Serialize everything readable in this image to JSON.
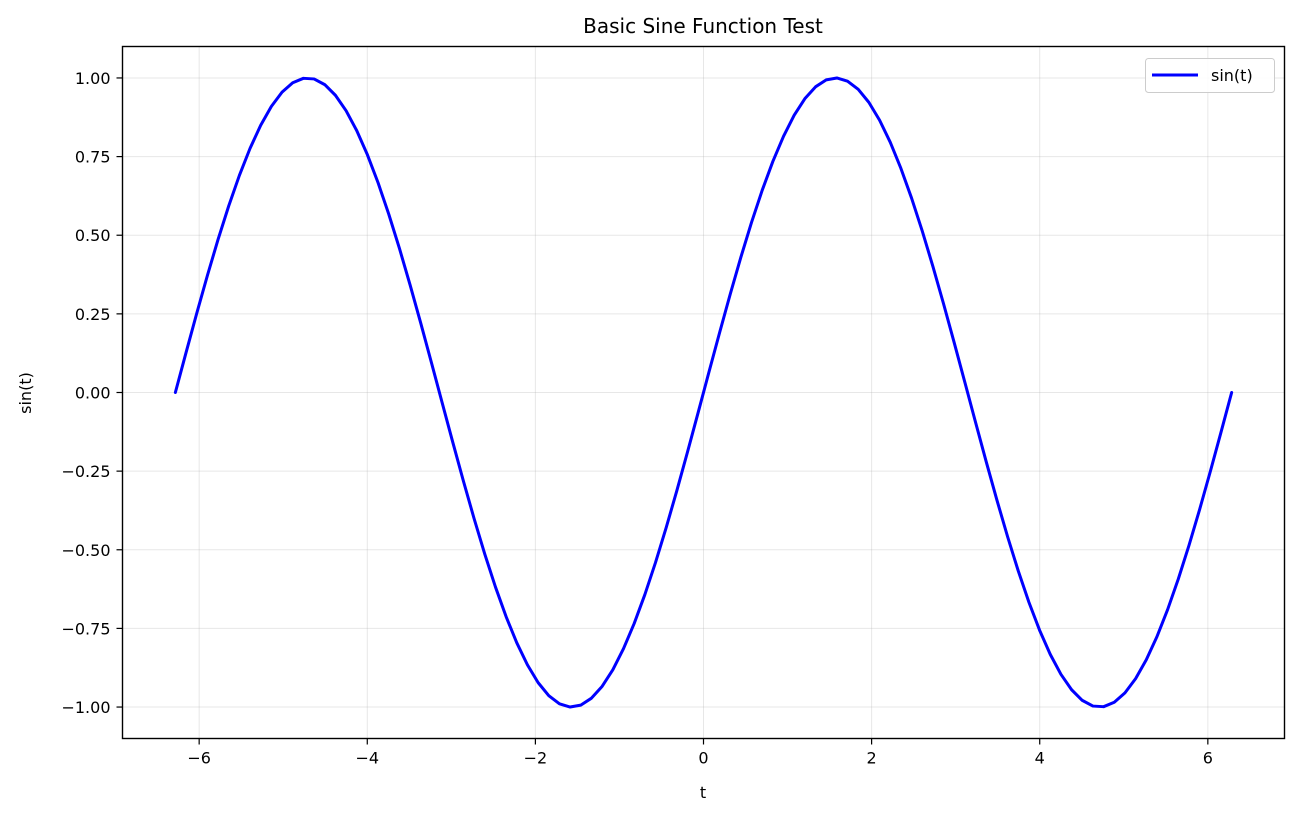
{
  "chart_data": {
    "type": "line",
    "title": "Basic Sine Function Test",
    "xlabel": "t",
    "ylabel": "sin(t)",
    "xlim": [
      -6.912,
      6.912
    ],
    "ylim": [
      -1.1,
      1.1
    ],
    "xticks": [
      -6,
      -4,
      -2,
      0,
      2,
      4,
      6
    ],
    "xtick_labels": [
      "−6",
      "−4",
      "−2",
      "0",
      "2",
      "4",
      "6"
    ],
    "yticks": [
      1.0,
      0.75,
      0.5,
      0.25,
      0.0,
      -0.25,
      -0.5,
      -0.75,
      -1.0
    ],
    "ytick_labels": [
      "1.00",
      "0.75",
      "0.50",
      "0.25",
      "0.00",
      "−0.25",
      "−0.50",
      "−0.75",
      "−1.00"
    ],
    "grid": true,
    "legend_position": "top-right",
    "series": [
      {
        "name": "sin(t)",
        "color": "#0000ff",
        "function": "sin",
        "x_range": [
          -6.2832,
          6.2832
        ],
        "num_points": 100
      }
    ]
  }
}
